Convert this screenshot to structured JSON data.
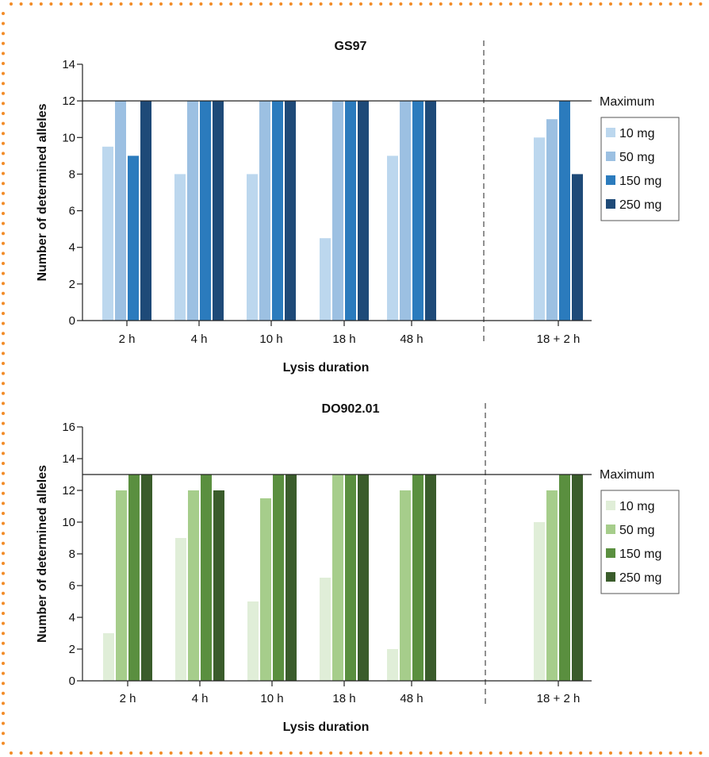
{
  "frame": {
    "border_color": "#f28c28"
  },
  "chart_data": [
    {
      "type": "bar",
      "title": "GS97",
      "xlabel": "Lysis duration",
      "ylabel": "Number of determined alleles",
      "categories": [
        "2 h",
        "4 h",
        "10 h",
        "18 h",
        "48 h",
        "18 + 2 h"
      ],
      "ylim": [
        0,
        14
      ],
      "yticks": [
        0,
        2,
        4,
        6,
        8,
        10,
        12,
        14
      ],
      "reference_line": {
        "value": 12,
        "label": "Maximum"
      },
      "separator_after_category": "48 h",
      "legend_position": "right",
      "series": [
        {
          "name": "10 mg",
          "color": "#bcd7ee",
          "values": [
            9.5,
            8,
            8,
            4.5,
            9,
            10
          ]
        },
        {
          "name": "50 mg",
          "color": "#9cc0e2",
          "values": [
            12,
            12,
            12,
            12,
            12,
            11
          ]
        },
        {
          "name": "150 mg",
          "color": "#2b7bbd",
          "values": [
            9,
            12,
            12,
            12,
            12,
            12
          ]
        },
        {
          "name": "250 mg",
          "color": "#1e4a78",
          "values": [
            12,
            12,
            12,
            12,
            12,
            8
          ]
        }
      ]
    },
    {
      "type": "bar",
      "title": "DO902.01",
      "xlabel": "Lysis duration",
      "ylabel": "Number of determined alleles",
      "categories": [
        "2 h",
        "4 h",
        "10 h",
        "18 h",
        "48 h",
        "18 + 2 h"
      ],
      "ylim": [
        0,
        16
      ],
      "yticks": [
        0,
        2,
        4,
        6,
        8,
        10,
        12,
        14,
        16
      ],
      "reference_line": {
        "value": 13,
        "label": "Maximum"
      },
      "separator_after_category": "48 h",
      "legend_position": "right",
      "series": [
        {
          "name": "10 mg",
          "color": "#e0eed8",
          "values": [
            3,
            9,
            5,
            6.5,
            2,
            10
          ]
        },
        {
          "name": "50 mg",
          "color": "#a6cd8b",
          "values": [
            12,
            12,
            11.5,
            13,
            12,
            12
          ]
        },
        {
          "name": "150 mg",
          "color": "#5a8f3f",
          "values": [
            13,
            13,
            13,
            13,
            13,
            13
          ]
        },
        {
          "name": "250 mg",
          "color": "#3a5c2b",
          "values": [
            13,
            12,
            13,
            13,
            13,
            13
          ]
        }
      ]
    }
  ]
}
